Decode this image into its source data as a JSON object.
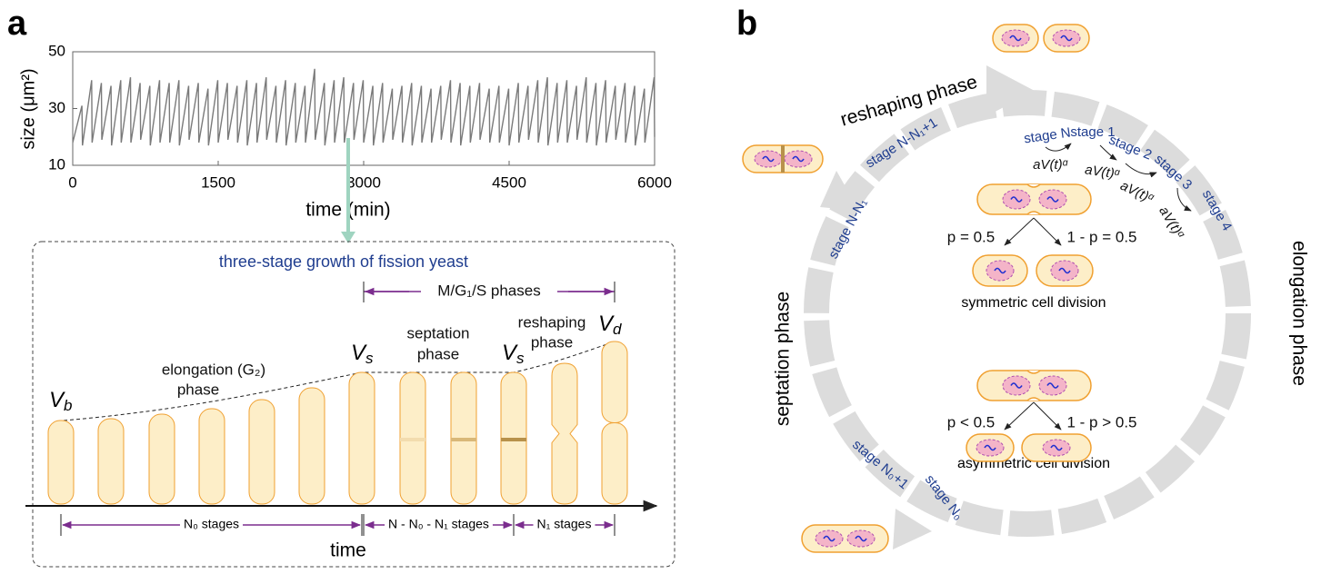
{
  "panel_a": {
    "label": "a",
    "chart_data": {
      "type": "line",
      "x_label": "time (min)",
      "y_label": "size (μm²)",
      "color": "#7a7a7a",
      "xlim": [
        0,
        6000
      ],
      "ylim": [
        10,
        50
      ],
      "xticks": [
        0,
        1500,
        3000,
        4500,
        6000
      ],
      "yticks": [
        10,
        30,
        50
      ],
      "x": [
        0,
        95,
        100,
        195,
        200,
        295,
        300,
        395,
        400,
        495,
        500,
        595,
        600,
        695,
        700,
        795,
        800,
        895,
        900,
        995,
        1000,
        1095,
        1100,
        1195,
        1200,
        1295,
        1300,
        1395,
        1400,
        1495,
        1500,
        1595,
        1600,
        1695,
        1700,
        1795,
        1800,
        1895,
        1900,
        1995,
        2000,
        2095,
        2100,
        2195,
        2200,
        2295,
        2300,
        2395,
        2400,
        2495,
        2500,
        2595,
        2600,
        2695,
        2700,
        2795,
        2800,
        2895,
        2900,
        2995,
        3000,
        3095,
        3100,
        3195,
        3200,
        3295,
        3300,
        3395,
        3400,
        3495,
        3500,
        3595,
        3600,
        3695,
        3700,
        3795,
        3800,
        3895,
        3900,
        3995,
        4000,
        4095,
        4100,
        4195,
        4200,
        4295,
        4300,
        4395,
        4400,
        4495,
        4500,
        4595,
        4600,
        4695,
        4700,
        4795,
        4800,
        4895,
        4900,
        4995,
        5000,
        5095,
        5100,
        5195,
        5200,
        5295,
        5300,
        5395,
        5400,
        5495,
        5500,
        5595,
        5600,
        5695,
        5700,
        5795,
        5800,
        5895,
        5900,
        5995,
        6000
      ],
      "values": [
        18,
        31,
        17,
        40,
        18,
        39,
        19,
        38,
        17,
        40,
        18,
        41,
        18,
        39,
        19,
        38,
        17,
        40,
        18,
        39,
        18,
        40,
        17,
        38,
        19,
        39,
        18,
        37,
        17,
        40,
        18,
        39,
        19,
        38,
        18,
        40,
        17,
        39,
        18,
        41,
        19,
        38,
        18,
        40,
        17,
        39,
        18,
        38,
        18,
        44,
        19,
        39,
        17,
        40,
        18,
        41,
        18,
        39,
        19,
        40,
        18,
        38,
        17,
        39,
        18,
        37,
        19,
        38,
        18,
        39,
        17,
        38,
        18,
        37,
        18,
        38,
        19,
        40,
        18,
        39,
        17,
        38,
        18,
        39,
        19,
        37,
        18,
        38,
        18,
        37,
        17,
        39,
        18,
        38,
        19,
        40,
        18,
        41,
        17,
        39,
        18,
        40,
        18,
        38,
        19,
        41,
        18,
        39,
        17,
        40,
        18,
        38,
        19,
        39,
        18,
        38,
        17,
        37,
        18,
        41,
        20
      ]
    },
    "diagram": {
      "title": "three-stage growth of fission yeast",
      "phases_span": "M/G₁/S phases",
      "elongation": [
        "elongation (G₂)",
        "phase"
      ],
      "septation": [
        "septation",
        "phase"
      ],
      "reshaping": [
        "reshaping",
        "phase"
      ],
      "volumes": [
        {
          "base": "V",
          "sub": "b"
        },
        {
          "base": "V",
          "sub": "s"
        },
        {
          "base": "V",
          "sub": "s"
        },
        {
          "base": "V",
          "sub": "d"
        }
      ],
      "spans": [
        "N₀ stages",
        "N - N₀ - N₁ stages",
        "N₁ stages"
      ],
      "axis": "time"
    }
  },
  "panel_b": {
    "label": "b",
    "phases": [
      "reshaping phase",
      "elongation phase",
      "septation phase"
    ],
    "stages": [
      "stage N",
      "stage 1",
      "stage 2",
      "stage 3",
      "stage 4",
      "stage N-N₁+1",
      "stage N-N₁",
      "stage N₀+1",
      "stage N₀"
    ],
    "rate": "aV(t)ᵅ",
    "symmetric": {
      "left": "p = 0.5",
      "right": "1 - p = 0.5",
      "caption": "symmetric cell division"
    },
    "asymmetric": {
      "left": "p < 0.5",
      "right": "1 - p > 0.5",
      "caption": "asymmetric cell division"
    }
  }
}
